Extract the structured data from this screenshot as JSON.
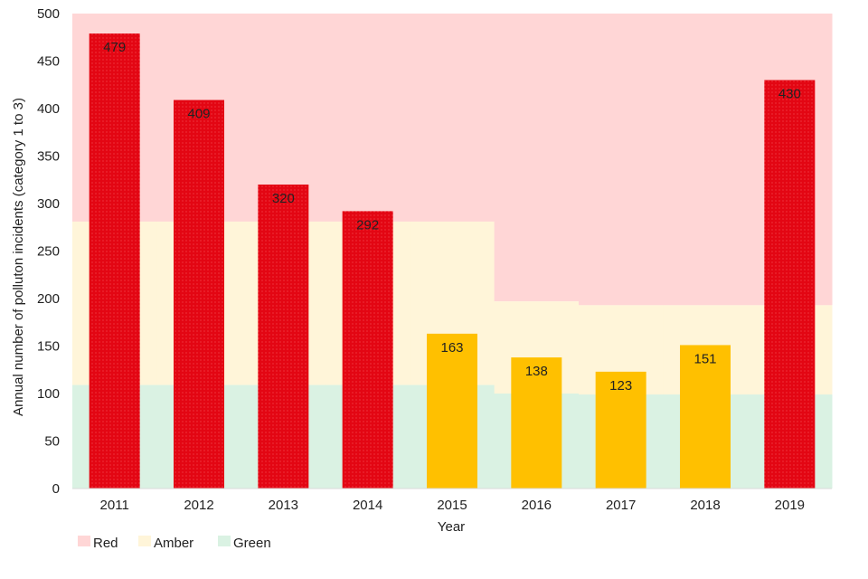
{
  "chart_data": {
    "type": "bar",
    "title": "",
    "xlabel": "Year",
    "ylabel": "Annual number of polluton incidents (category 1 to 3)",
    "ylim": [
      0,
      500
    ],
    "yticks": [
      0,
      50,
      100,
      150,
      200,
      250,
      300,
      350,
      400,
      450,
      500
    ],
    "categories": [
      "2011",
      "2012",
      "2013",
      "2014",
      "2015",
      "2016",
      "2017",
      "2018",
      "2019"
    ],
    "values": [
      479,
      409,
      320,
      292,
      163,
      138,
      123,
      151,
      430
    ],
    "data_labels": [
      "479",
      "409",
      "320",
      "292",
      "163",
      "138",
      "123",
      "151",
      "430"
    ],
    "bar_status": [
      "Red",
      "Red",
      "Red",
      "Red",
      "Amber",
      "Amber",
      "Amber",
      "Amber",
      "Red"
    ],
    "thresholds": {
      "green_upper": [
        109,
        109,
        109,
        109,
        109,
        100,
        99,
        99,
        99
      ],
      "amber_upper": [
        281,
        281,
        281,
        281,
        281,
        197,
        193,
        193,
        193
      ]
    },
    "legend": [
      {
        "label": "Red",
        "color": "#ffd6d6"
      },
      {
        "label": "Amber",
        "color": "#fff5d9"
      },
      {
        "label": "Green",
        "color": "#daf2e3"
      }
    ],
    "colors": {
      "red_bar": "#e30613",
      "amber_bar": "#ffc000",
      "band_red": "#ffd6d6",
      "band_amber": "#fff5d9",
      "band_green": "#daf2e3"
    }
  }
}
